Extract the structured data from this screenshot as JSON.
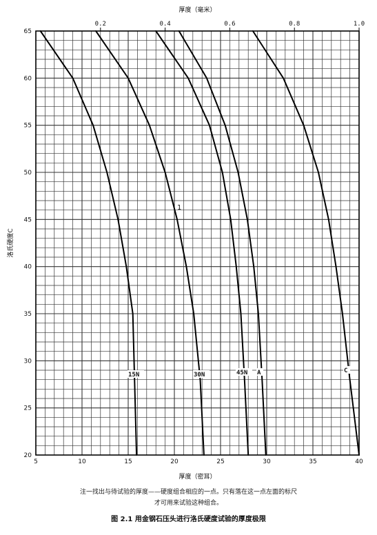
{
  "chart_data": {
    "type": "line",
    "title": "",
    "top_axis_label": "厚度（毫米）",
    "top_ticks": [
      0.2,
      0.4,
      0.6,
      0.8,
      1.0
    ],
    "top_range": [
      0.0,
      1.0
    ],
    "xlabel": "厚度（密耳）",
    "ylabel": "洛氏硬度C",
    "xlim": [
      5,
      40
    ],
    "ylim": [
      20,
      65
    ],
    "x_ticks": [
      5,
      10,
      15,
      20,
      25,
      30,
      35,
      40
    ],
    "y_ticks": [
      20,
      25,
      30,
      35,
      40,
      45,
      50,
      55,
      60,
      65
    ],
    "grid": true,
    "series": [
      {
        "name": "15N",
        "x": [
          5.5,
          9.0,
          11.2,
          12.7,
          13.9,
          14.8,
          15.5,
          15.9
        ],
        "y": [
          65,
          60,
          55,
          50,
          45,
          40,
          35,
          20
        ]
      },
      {
        "name": "30N",
        "x": [
          11.5,
          15.0,
          17.3,
          19.0,
          20.3,
          21.3,
          22.1,
          22.8,
          23.2
        ],
        "y": [
          65,
          60,
          55,
          50,
          45,
          40,
          35,
          28,
          20
        ]
      },
      {
        "name": "45N",
        "x": [
          18.0,
          21.5,
          23.8,
          25.2,
          26.1,
          26.7,
          27.2,
          27.6,
          28.0
        ],
        "y": [
          65,
          60,
          55,
          50,
          45,
          40,
          35,
          28,
          20
        ]
      },
      {
        "name": "A",
        "x": [
          20.5,
          23.5,
          25.5,
          26.9,
          27.9,
          28.6,
          29.1,
          29.5,
          29.9
        ],
        "y": [
          65,
          60,
          55,
          50,
          45,
          40,
          35,
          28,
          20
        ]
      },
      {
        "name": "C",
        "x": [
          28.5,
          31.8,
          34.0,
          35.6,
          36.7,
          37.5,
          38.2,
          39.0,
          40.0
        ],
        "y": [
          65,
          60,
          55,
          50,
          45,
          40,
          35,
          28,
          20
        ]
      }
    ],
    "annotation": "1"
  },
  "note_line1": "注一找出与待试验的厚度——硬度组合相应的一点。只有落在这一点左面的标尺",
  "note_line2": "才可用来试验这种组合。",
  "caption": "图 2.1 用金钢石压头进行洛氏硬度试验的厚度极限"
}
